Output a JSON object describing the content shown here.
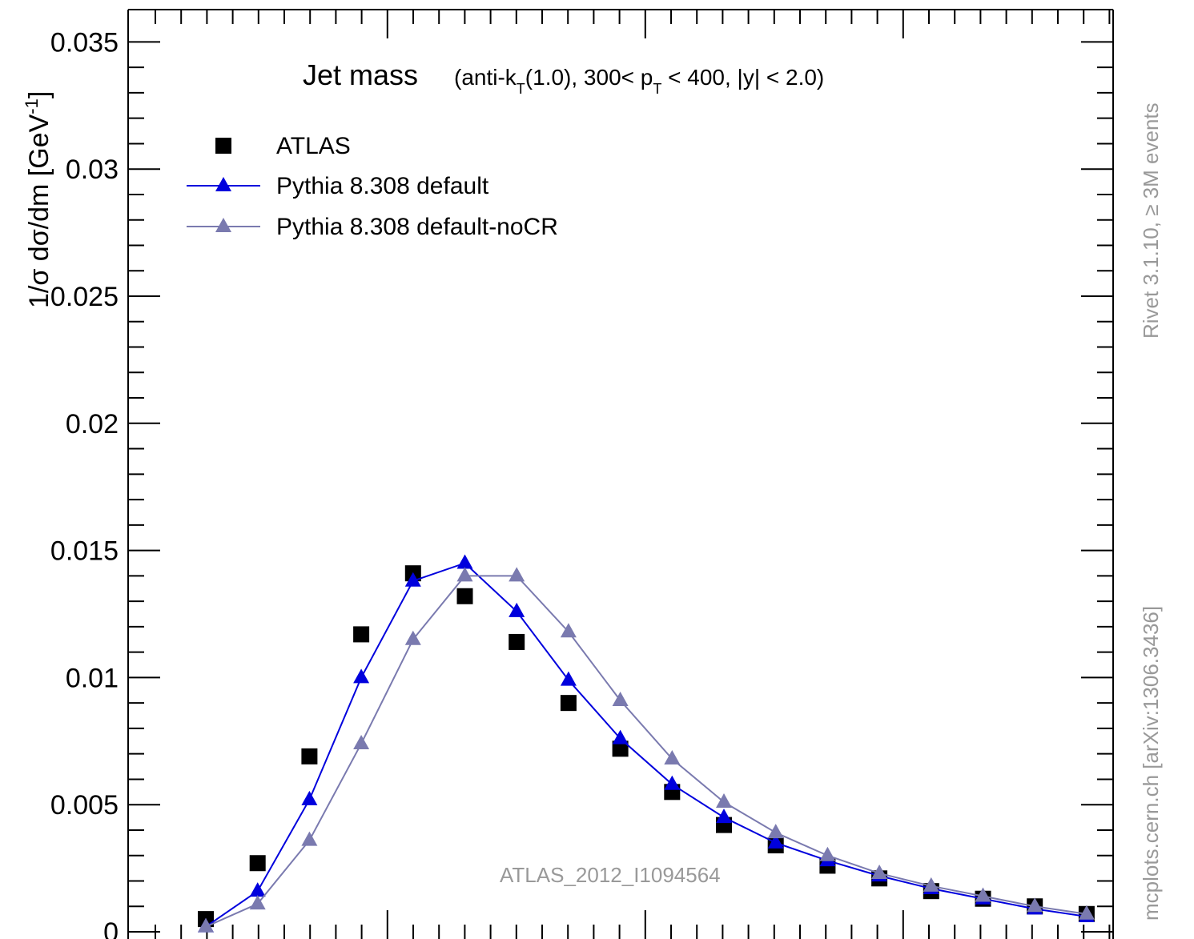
{
  "chart_data": {
    "type": "scatter",
    "title": "Jet mass",
    "subtitle_pre": "(anti-k",
    "subtitle_sub1": "T",
    "subtitle_mid": "(1.0), 300< p",
    "subtitle_sub2": "T",
    "subtitle_post": " < 400, |y| < 2.0)",
    "ylabel": "1/σ dσ/dm [GeV",
    "ylabel_sup": "-1",
    "ylabel_end": "]",
    "ylim": [
      0,
      0.036
    ],
    "y_ticks": [
      0,
      0.005,
      0.01,
      0.015,
      0.02,
      0.025,
      0.03,
      0.035
    ],
    "y_tick_labels": [
      "0",
      "0.005",
      "0.01",
      "0.015",
      "0.02",
      "0.025",
      "0.03",
      "0.035"
    ],
    "x": [
      1,
      2,
      3,
      4,
      5,
      6,
      7,
      8,
      9,
      10,
      11,
      12,
      13,
      14,
      15,
      16,
      17,
      18
    ],
    "legend_position": "top-left",
    "series": [
      {
        "name": "ATLAS",
        "style": "markers",
        "color": "#000000",
        "values": [
          0.0005,
          0.0027,
          0.0069,
          0.0117,
          0.0141,
          0.0132,
          0.0114,
          0.009,
          0.0072,
          0.0055,
          0.0042,
          0.0034,
          0.0026,
          0.0021,
          0.0016,
          0.0013,
          0.001,
          0.0007
        ]
      },
      {
        "name": "Pythia 8.308 default",
        "style": "line-triangles",
        "color": "#0000dd",
        "values": [
          0.0002,
          0.0016,
          0.0052,
          0.01,
          0.0138,
          0.0145,
          0.0126,
          0.0099,
          0.0076,
          0.0058,
          0.0045,
          0.0035,
          0.0028,
          0.0022,
          0.0017,
          0.0013,
          0.0009,
          0.0006
        ]
      },
      {
        "name": "Pythia 8.308 default-noCR",
        "style": "line-triangles",
        "color": "#7a7aaf",
        "values": [
          0.0002,
          0.0011,
          0.0036,
          0.0074,
          0.0115,
          0.014,
          0.014,
          0.0118,
          0.0091,
          0.0068,
          0.0051,
          0.0039,
          0.003,
          0.0023,
          0.0018,
          0.0014,
          0.001,
          0.0007
        ]
      }
    ],
    "watermark": "ATLAS_2012_I1094564",
    "side_text_top": "Rivet 3.1.10, ≥ 3M events",
    "side_text_bottom": "mcplots.cern.ch [arXiv:1306.3436]"
  }
}
